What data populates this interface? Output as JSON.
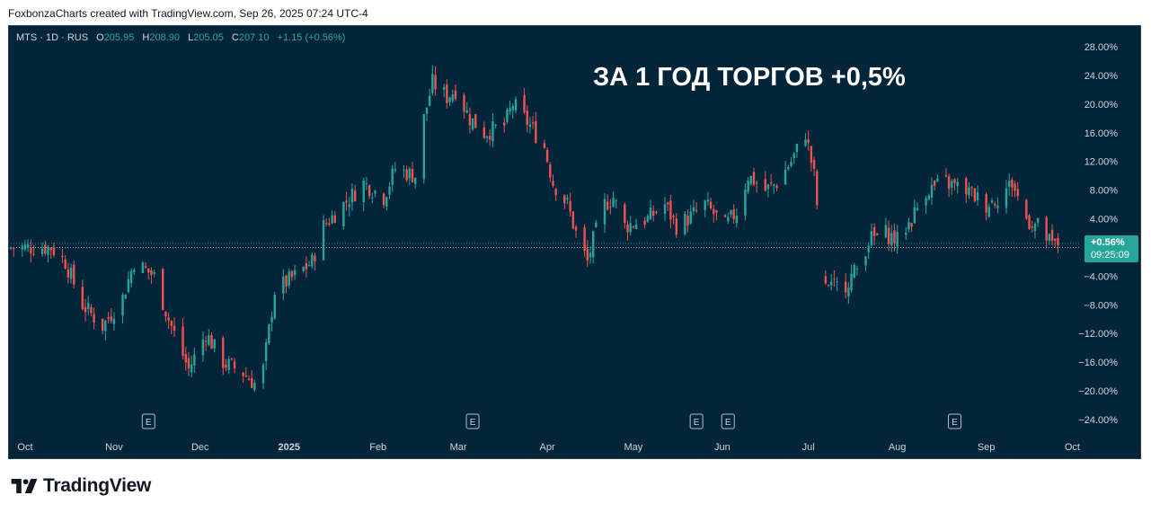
{
  "header": {
    "attribution": "FoxbonzaCharts created with TradingView.com, Sep 26, 2025 07:24 UTC-4"
  },
  "legend": {
    "symbol": "MTS · 1D · RUS",
    "o_label": "O",
    "o_value": "205.95",
    "h_label": "H",
    "h_value": "208.90",
    "l_label": "L",
    "l_value": "205.05",
    "c_label": "C",
    "c_value": "207.10",
    "change": "+1.15 (+0.56%)"
  },
  "footer": {
    "brand": "TradingView"
  },
  "colors": {
    "background": "#03253a",
    "up": "#26a69a",
    "down": "#ef5350",
    "text": "#d1d4dc",
    "annotation": "#ffffff",
    "badge_bg": "#26a69a"
  },
  "chart_data": {
    "type": "candlestick",
    "annotation": "ЗА 1 ГОД ТОРГОВ +0,5%",
    "y_unit": "percent change",
    "ylim": [
      -26,
      30
    ],
    "y_ticks": [
      28,
      24,
      20,
      16,
      12,
      8,
      4,
      0,
      -4,
      -8,
      -12,
      -16,
      -20,
      -24
    ],
    "y_tick_labels": [
      "28.00%",
      "24.00%",
      "20.00%",
      "16.00%",
      "12.00%",
      "8.00%",
      "4.00%",
      "",
      "−4.00%",
      "−8.00%",
      "−12.00%",
      "−16.00%",
      "−20.00%",
      "−24.00%"
    ],
    "x_ticks": [
      {
        "label": "Oct",
        "date": "2024-10-01"
      },
      {
        "label": "Nov",
        "date": "2024-11-01"
      },
      {
        "label": "Dec",
        "date": "2024-12-01"
      },
      {
        "label": "2025",
        "date": "2025-01-01"
      },
      {
        "label": "Feb",
        "date": "2025-02-01"
      },
      {
        "label": "Mar",
        "date": "2025-03-01"
      },
      {
        "label": "Apr",
        "date": "2025-04-01"
      },
      {
        "label": "May",
        "date": "2025-05-01"
      },
      {
        "label": "Jun",
        "date": "2025-06-01"
      },
      {
        "label": "Jul",
        "date": "2025-07-01"
      },
      {
        "label": "Aug",
        "date": "2025-08-01"
      },
      {
        "label": "Sep",
        "date": "2025-09-01"
      },
      {
        "label": "Oct",
        "date": "2025-10-01"
      }
    ],
    "x_range": [
      "2024-09-26",
      "2025-10-04"
    ],
    "last_value_badge": {
      "value": 0.56,
      "text": "+0.56%",
      "countdown": "09:25:09"
    },
    "earnings_markers": [
      {
        "label": "E",
        "date": "2024-11-13"
      },
      {
        "label": "E",
        "date": "2025-03-06"
      },
      {
        "label": "E",
        "date": "2025-05-23"
      },
      {
        "label": "E",
        "date": "2025-06-03"
      },
      {
        "label": "E",
        "date": "2025-08-21"
      }
    ],
    "close_path": [
      [
        "2024-09-26",
        0
      ],
      [
        "2024-10-10",
        0
      ],
      [
        "2024-10-15",
        -2
      ],
      [
        "2024-10-21",
        -8
      ],
      [
        "2024-10-28",
        -11
      ],
      [
        "2024-11-04",
        -7
      ],
      [
        "2024-11-08",
        -2
      ],
      [
        "2024-11-15",
        -4
      ],
      [
        "2024-11-20",
        -10
      ],
      [
        "2024-11-27",
        -17
      ],
      [
        "2024-12-03",
        -12
      ],
      [
        "2024-12-09",
        -16
      ],
      [
        "2024-12-16",
        -17.5
      ],
      [
        "2024-12-20",
        -19
      ],
      [
        "2024-12-23",
        -17
      ],
      [
        "2024-12-27",
        -6
      ],
      [
        "2025-01-03",
        -4
      ],
      [
        "2025-01-09",
        -2
      ],
      [
        "2025-01-13",
        3
      ],
      [
        "2025-01-20",
        6
      ],
      [
        "2025-01-27",
        9
      ],
      [
        "2025-02-03",
        7
      ],
      [
        "2025-02-07",
        11
      ],
      [
        "2025-02-14",
        10
      ],
      [
        "2025-02-17",
        18
      ],
      [
        "2025-02-20",
        23
      ],
      [
        "2025-02-25",
        21
      ],
      [
        "2025-02-28",
        22
      ],
      [
        "2025-03-05",
        18
      ],
      [
        "2025-03-10",
        16
      ],
      [
        "2025-03-17",
        17
      ],
      [
        "2025-03-20",
        20
      ],
      [
        "2025-03-26",
        17
      ],
      [
        "2025-03-31",
        14
      ],
      [
        "2025-04-03",
        9
      ],
      [
        "2025-04-08",
        6
      ],
      [
        "2025-04-11",
        2
      ],
      [
        "2025-04-15",
        -2
      ],
      [
        "2025-04-17",
        1
      ],
      [
        "2025-04-21",
        6
      ],
      [
        "2025-04-24",
        7
      ],
      [
        "2025-04-28",
        3
      ],
      [
        "2025-05-06",
        4
      ],
      [
        "2025-05-12",
        6
      ],
      [
        "2025-05-16",
        3
      ],
      [
        "2025-05-20",
        4
      ],
      [
        "2025-05-26",
        6
      ],
      [
        "2025-06-02",
        3
      ],
      [
        "2025-06-06",
        5
      ],
      [
        "2025-06-10",
        10
      ],
      [
        "2025-06-16",
        8
      ],
      [
        "2025-06-20",
        9
      ],
      [
        "2025-06-25",
        12
      ],
      [
        "2025-06-30",
        16
      ],
      [
        "2025-07-03",
        10
      ],
      [
        "2025-07-07",
        -6
      ],
      [
        "2025-07-14",
        -5
      ],
      [
        "2025-07-18",
        -3
      ],
      [
        "2025-07-22",
        1
      ],
      [
        "2025-07-28",
        2
      ],
      [
        "2025-08-01",
        1
      ],
      [
        "2025-08-06",
        4
      ],
      [
        "2025-08-11",
        8
      ],
      [
        "2025-08-18",
        9
      ],
      [
        "2025-08-25",
        8
      ],
      [
        "2025-09-01",
        6
      ],
      [
        "2025-09-05",
        7
      ],
      [
        "2025-09-10",
        9
      ],
      [
        "2025-09-15",
        4
      ],
      [
        "2025-09-19",
        3
      ],
      [
        "2025-09-24",
        0.2
      ],
      [
        "2025-09-26",
        0.56
      ]
    ]
  }
}
